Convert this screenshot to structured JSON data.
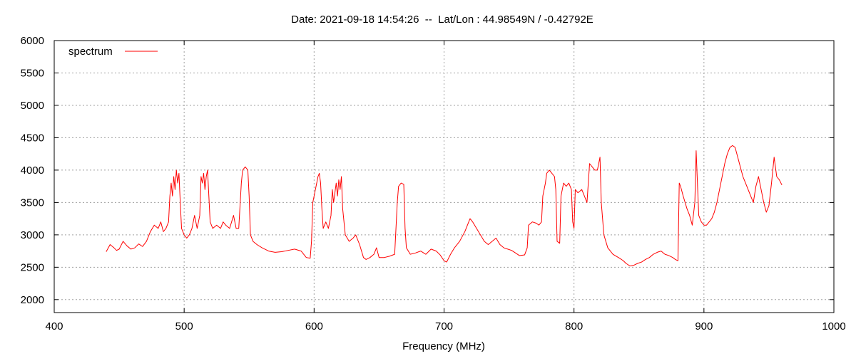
{
  "chart_data": {
    "type": "line",
    "title": "Date: 2021-09-18 14:54:26  --  Lat/Lon : 44.98549N / -0.42792E",
    "xlabel": "Frequency (MHz)",
    "ylabel": "",
    "xlim": [
      400,
      1000
    ],
    "ylim": [
      1800,
      6000
    ],
    "xticks": [
      400,
      500,
      600,
      700,
      800,
      900,
      1000
    ],
    "yticks": [
      2000,
      2500,
      3000,
      3500,
      4000,
      4500,
      5000,
      5500,
      6000
    ],
    "grid": true,
    "legend_position": "top-left",
    "series": [
      {
        "name": "spectrum",
        "color": "#ff0000",
        "points": [
          [
            440,
            2740
          ],
          [
            443,
            2850
          ],
          [
            446,
            2800
          ],
          [
            448,
            2760
          ],
          [
            450,
            2780
          ],
          [
            453,
            2900
          ],
          [
            456,
            2830
          ],
          [
            459,
            2780
          ],
          [
            462,
            2800
          ],
          [
            465,
            2860
          ],
          [
            468,
            2820
          ],
          [
            471,
            2900
          ],
          [
            474,
            3050
          ],
          [
            477,
            3150
          ],
          [
            480,
            3100
          ],
          [
            482,
            3200
          ],
          [
            484,
            3050
          ],
          [
            486,
            3100
          ],
          [
            488,
            3200
          ],
          [
            489,
            3600
          ],
          [
            490,
            3800
          ],
          [
            491,
            3600
          ],
          [
            492,
            3900
          ],
          [
            493,
            3700
          ],
          [
            494,
            4000
          ],
          [
            495,
            3800
          ],
          [
            496,
            3950
          ],
          [
            497,
            3500
          ],
          [
            498,
            3100
          ],
          [
            500,
            3000
          ],
          [
            502,
            2950
          ],
          [
            504,
            3000
          ],
          [
            506,
            3100
          ],
          [
            508,
            3300
          ],
          [
            510,
            3100
          ],
          [
            512,
            3300
          ],
          [
            513,
            3900
          ],
          [
            514,
            3800
          ],
          [
            515,
            3950
          ],
          [
            516,
            3700
          ],
          [
            517,
            3900
          ],
          [
            518,
            4000
          ],
          [
            519,
            3600
          ],
          [
            520,
            3200
          ],
          [
            522,
            3100
          ],
          [
            525,
            3150
          ],
          [
            528,
            3100
          ],
          [
            530,
            3200
          ],
          [
            532,
            3150
          ],
          [
            535,
            3100
          ],
          [
            538,
            3300
          ],
          [
            540,
            3100
          ],
          [
            542,
            3100
          ],
          [
            544,
            3800
          ],
          [
            545,
            4000
          ],
          [
            547,
            4050
          ],
          [
            549,
            4000
          ],
          [
            550,
            3600
          ],
          [
            551,
            3000
          ],
          [
            553,
            2900
          ],
          [
            556,
            2850
          ],
          [
            560,
            2800
          ],
          [
            565,
            2750
          ],
          [
            570,
            2730
          ],
          [
            575,
            2740
          ],
          [
            580,
            2760
          ],
          [
            585,
            2780
          ],
          [
            590,
            2750
          ],
          [
            594,
            2650
          ],
          [
            597,
            2640
          ],
          [
            598,
            2900
          ],
          [
            599,
            3500
          ],
          [
            600,
            3600
          ],
          [
            602,
            3800
          ],
          [
            603,
            3900
          ],
          [
            604,
            3950
          ],
          [
            605,
            3800
          ],
          [
            606,
            3400
          ],
          [
            607,
            3100
          ],
          [
            609,
            3200
          ],
          [
            611,
            3100
          ],
          [
            613,
            3300
          ],
          [
            614,
            3700
          ],
          [
            615,
            3500
          ],
          [
            617,
            3800
          ],
          [
            618,
            3600
          ],
          [
            619,
            3850
          ],
          [
            620,
            3700
          ],
          [
            621,
            3900
          ],
          [
            622,
            3400
          ],
          [
            624,
            3000
          ],
          [
            627,
            2900
          ],
          [
            630,
            2950
          ],
          [
            632,
            3000
          ],
          [
            635,
            2850
          ],
          [
            638,
            2650
          ],
          [
            640,
            2620
          ],
          [
            643,
            2650
          ],
          [
            646,
            2700
          ],
          [
            648,
            2800
          ],
          [
            650,
            2650
          ],
          [
            654,
            2650
          ],
          [
            658,
            2670
          ],
          [
            662,
            2700
          ],
          [
            664,
            3500
          ],
          [
            665,
            3750
          ],
          [
            667,
            3800
          ],
          [
            669,
            3780
          ],
          [
            670,
            3100
          ],
          [
            671,
            2800
          ],
          [
            674,
            2700
          ],
          [
            678,
            2720
          ],
          [
            682,
            2750
          ],
          [
            686,
            2700
          ],
          [
            690,
            2780
          ],
          [
            694,
            2750
          ],
          [
            697,
            2690
          ],
          [
            700,
            2600
          ],
          [
            702,
            2580
          ],
          [
            705,
            2700
          ],
          [
            708,
            2800
          ],
          [
            712,
            2900
          ],
          [
            716,
            3050
          ],
          [
            718,
            3150
          ],
          [
            720,
            3250
          ],
          [
            722,
            3200
          ],
          [
            725,
            3100
          ],
          [
            728,
            3000
          ],
          [
            731,
            2900
          ],
          [
            734,
            2850
          ],
          [
            737,
            2900
          ],
          [
            740,
            2950
          ],
          [
            743,
            2850
          ],
          [
            746,
            2800
          ],
          [
            749,
            2780
          ],
          [
            752,
            2760
          ],
          [
            755,
            2720
          ],
          [
            758,
            2680
          ],
          [
            762,
            2690
          ],
          [
            764,
            2800
          ],
          [
            765,
            3150
          ],
          [
            768,
            3200
          ],
          [
            771,
            3180
          ],
          [
            773,
            3150
          ],
          [
            775,
            3200
          ],
          [
            776,
            3600
          ],
          [
            778,
            3800
          ],
          [
            779,
            3950
          ],
          [
            781,
            4000
          ],
          [
            783,
            3950
          ],
          [
            785,
            3900
          ],
          [
            786,
            3700
          ],
          [
            787,
            2900
          ],
          [
            789,
            2870
          ],
          [
            790,
            3600
          ],
          [
            792,
            3800
          ],
          [
            794,
            3750
          ],
          [
            796,
            3800
          ],
          [
            798,
            3700
          ],
          [
            799,
            3200
          ],
          [
            800,
            3100
          ],
          [
            801,
            3700
          ],
          [
            803,
            3650
          ],
          [
            806,
            3700
          ],
          [
            808,
            3600
          ],
          [
            810,
            3500
          ],
          [
            811,
            3800
          ],
          [
            812,
            4100
          ],
          [
            814,
            4050
          ],
          [
            816,
            4000
          ],
          [
            818,
            4000
          ],
          [
            820,
            4200
          ],
          [
            821,
            3500
          ],
          [
            823,
            3000
          ],
          [
            826,
            2800
          ],
          [
            830,
            2700
          ],
          [
            835,
            2640
          ],
          [
            838,
            2600
          ],
          [
            840,
            2560
          ],
          [
            843,
            2520
          ],
          [
            846,
            2530
          ],
          [
            849,
            2560
          ],
          [
            852,
            2580
          ],
          [
            855,
            2620
          ],
          [
            858,
            2650
          ],
          [
            861,
            2700
          ],
          [
            864,
            2730
          ],
          [
            867,
            2750
          ],
          [
            870,
            2700
          ],
          [
            873,
            2680
          ],
          [
            876,
            2650
          ],
          [
            878,
            2620
          ],
          [
            880,
            2600
          ],
          [
            881,
            3800
          ],
          [
            882,
            3750
          ],
          [
            884,
            3600
          ],
          [
            887,
            3400
          ],
          [
            889,
            3300
          ],
          [
            891,
            3150
          ],
          [
            893,
            3500
          ],
          [
            894,
            4300
          ],
          [
            895,
            3800
          ],
          [
            896,
            3300
          ],
          [
            898,
            3200
          ],
          [
            900,
            3150
          ],
          [
            902,
            3150
          ],
          [
            904,
            3200
          ],
          [
            906,
            3250
          ],
          [
            908,
            3350
          ],
          [
            910,
            3500
          ],
          [
            912,
            3700
          ],
          [
            914,
            3900
          ],
          [
            916,
            4100
          ],
          [
            918,
            4250
          ],
          [
            920,
            4350
          ],
          [
            922,
            4380
          ],
          [
            924,
            4350
          ],
          [
            926,
            4200
          ],
          [
            928,
            4050
          ],
          [
            930,
            3900
          ],
          [
            932,
            3800
          ],
          [
            934,
            3700
          ],
          [
            936,
            3600
          ],
          [
            938,
            3500
          ],
          [
            940,
            3750
          ],
          [
            942,
            3900
          ],
          [
            944,
            3700
          ],
          [
            946,
            3500
          ],
          [
            948,
            3350
          ],
          [
            950,
            3450
          ],
          [
            952,
            3800
          ],
          [
            954,
            4200
          ],
          [
            956,
            3900
          ],
          [
            958,
            3850
          ],
          [
            960,
            3770
          ]
        ]
      }
    ]
  }
}
